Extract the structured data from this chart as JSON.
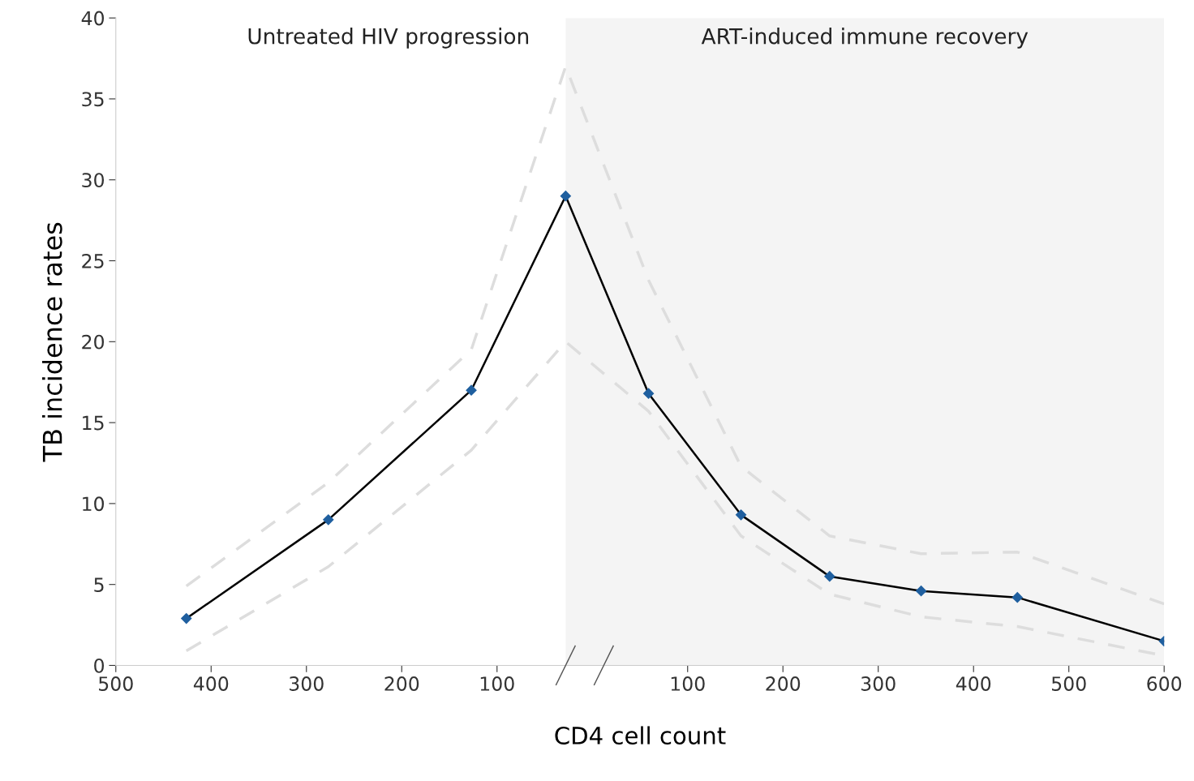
{
  "chart_data": {
    "type": "line",
    "xlabel": "CD4 cell count",
    "ylabel": "TB incidence rates",
    "x": [
      -426,
      -277,
      -127,
      -28,
      59,
      156,
      249,
      345,
      446,
      600
    ],
    "series": [
      {
        "color": "#dddddd",
        "line_style": "dashed",
        "marker": "none",
        "values": [
          4.9,
          11.3,
          19.5,
          37.0,
          23.8,
          12.3,
          8.0,
          6.9,
          7.0,
          3.8
        ]
      },
      {
        "color": "#dddddd",
        "line_style": "dashed",
        "marker": "none",
        "values": [
          0.9,
          6.1,
          13.3,
          20.0,
          15.7,
          8.0,
          4.4,
          3.0,
          2.4,
          0.6
        ]
      },
      {
        "color": "#000000",
        "values": [
          2.9,
          9.0,
          17.0,
          29.0,
          16.8,
          9.3,
          5.5,
          4.6,
          4.2,
          1.5
        ]
      }
    ],
    "marker": "diamond",
    "line_style": "solid",
    "grid": false,
    "xlim": [
      -500,
      600
    ],
    "ylim": [
      0,
      40
    ],
    "xticks": [
      {
        "value": -500,
        "label": "500"
      },
      {
        "value": -400,
        "label": "400"
      },
      {
        "value": -300,
        "label": "300"
      },
      {
        "value": -200,
        "label": "200"
      },
      {
        "value": -100,
        "label": "100"
      },
      100,
      200,
      300,
      400,
      500,
      600
    ],
    "yticks": [
      0,
      5,
      10,
      15,
      20,
      25,
      30,
      35,
      40
    ],
    "bands": [
      {
        "axis": "x",
        "from": -28,
        "to": 600,
        "label": "ART-induced immune recovery",
        "color": "#f4f4f4"
      }
    ],
    "annotations": [
      "Untreated HIV progression"
    ]
  }
}
